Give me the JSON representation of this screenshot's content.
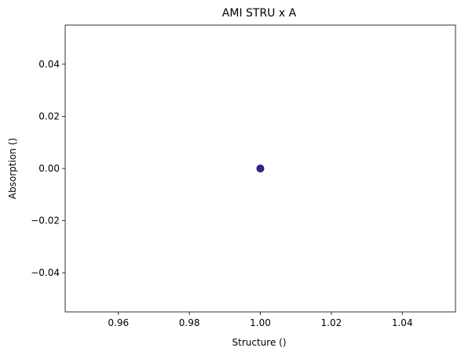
{
  "chart_data": {
    "type": "scatter",
    "title": "AMI STRU x A",
    "xlabel": "Structure ()",
    "ylabel": "Absorption ()",
    "xlim": [
      0.945,
      1.055
    ],
    "ylim": [
      -0.055,
      0.055
    ],
    "grid": false,
    "x_ticks": [
      0.96,
      0.98,
      1.0,
      1.02,
      1.04
    ],
    "x_tick_labels": [
      "0.96",
      "0.98",
      "1.00",
      "1.02",
      "1.04"
    ],
    "y_ticks": [
      0.04,
      0.02,
      0.0,
      -0.02,
      -0.04
    ],
    "y_tick_labels": [
      "0.04",
      "0.02",
      "0.00",
      "−0.02",
      "−0.04"
    ],
    "series": [
      {
        "points": [
          {
            "x": 1.0,
            "y": 0.0
          }
        ],
        "color": "#3d1f9e",
        "edgecolor": "#1a1a5e"
      }
    ]
  }
}
